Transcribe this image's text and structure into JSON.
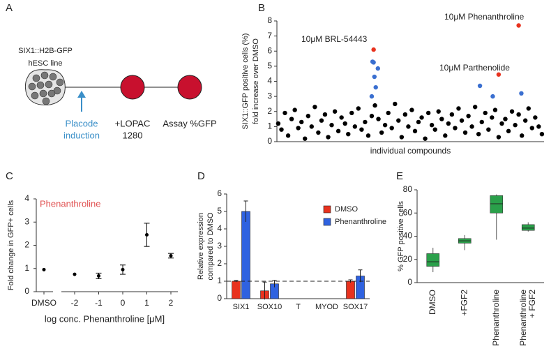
{
  "diagram": {
    "panel": "A",
    "cell_line": [
      "SIX1::H2B-GFP",
      "hESC line"
    ],
    "step1": [
      "Placode",
      "induction"
    ],
    "step2": [
      "+LOPAC",
      "1280"
    ],
    "step3": "Assay %GFP"
  },
  "chart_data": [
    {
      "type": "scatter",
      "panel": "B",
      "y_label": [
        "SIX1::GFP positive cells (%)",
        "fold increase over DMSO"
      ],
      "x_label": "individual compounds",
      "annotations": [
        "10μM BRL-54443",
        "10μM Phenanthroline",
        "10μM Parthenolide"
      ],
      "xlim": [
        0,
        1000
      ],
      "ylim": [
        0,
        8
      ],
      "yticks": [
        0,
        1,
        2,
        3,
        4,
        5,
        6,
        7,
        8
      ],
      "series": [
        {
          "color": "#000000",
          "x": [
            5,
            17,
            30,
            42,
            55,
            67,
            80,
            92,
            105,
            117,
            130,
            142,
            155,
            167,
            180,
            192,
            205,
            217,
            230,
            242,
            255,
            267,
            280,
            292,
            305,
            317,
            330,
            342,
            355,
            367,
            380,
            392,
            405,
            417,
            430,
            442,
            455,
            467,
            480,
            492,
            505,
            517,
            530,
            542,
            555,
            567,
            580,
            592,
            605,
            617,
            630,
            642,
            655,
            667,
            680,
            692,
            705,
            717,
            730,
            742,
            755,
            767,
            780,
            792,
            805,
            817,
            830,
            842,
            855,
            867,
            880,
            892,
            905,
            917,
            930,
            942,
            955,
            967,
            980,
            992
          ],
          "y": [
            1.2,
            0.8,
            1.9,
            0.4,
            1.5,
            2.1,
            0.9,
            1.3,
            0.2,
            1.7,
            1.0,
            2.3,
            0.6,
            1.4,
            1.8,
            0.3,
            1.1,
            2.0,
            0.7,
            1.6,
            1.2,
            0.5,
            1.9,
            1.0,
            2.2,
            0.8,
            1.3,
            0.4,
            1.7,
            2.4,
            1.5,
            0.6,
            1.1,
            1.9,
            0.9,
            2.5,
            1.4,
            0.3,
            1.8,
            1.0,
            2.1,
            0.7,
            1.3,
            1.6,
            0.2,
            1.9,
            1.1,
            0.8,
            2.0,
            1.5,
            0.4,
            1.2,
            1.8,
            0.9,
            2.2,
            1.4,
            0.6,
            1.7,
            1.0,
            2.3,
            0.5,
            1.3,
            1.9,
            0.8,
            1.6,
            2.1,
            0.3,
            1.2,
            1.5,
            0.7,
            2.0,
            1.1,
            1.8,
            0.4,
            1.4,
            2.2,
            0.9,
            1.6,
            1.0,
            0.5
          ]
        },
        {
          "color": "#3a6fd0",
          "x": [
            358,
            362,
            378,
            365,
            370,
            355,
            760,
            808,
            915
          ],
          "y": [
            5.3,
            5.25,
            4.85,
            4.3,
            3.6,
            3.0,
            3.7,
            3.0,
            3.2
          ]
        },
        {
          "color": "#e8321e",
          "x": [
            362,
            905,
            830
          ],
          "y": [
            6.1,
            7.7,
            4.45
          ]
        }
      ]
    },
    {
      "type": "errorbar",
      "panel": "C",
      "y_label": "Fold change in GFP+ cells",
      "x_label": "log conc. Phenanthroline [μM]",
      "annotation": "Phenanthroline",
      "categories": [
        "DMSO",
        "-2",
        "-1",
        "0",
        "1",
        "2"
      ],
      "values": [
        0.95,
        0.75,
        0.68,
        0.95,
        2.45,
        1.55
      ],
      "errors": [
        0,
        0,
        0.12,
        0.2,
        0.5,
        0.1
      ],
      "ylim": [
        0,
        4
      ],
      "yticks": [
        0,
        1,
        2,
        3,
        4
      ],
      "color": "#000000"
    },
    {
      "type": "bar",
      "panel": "D",
      "y_label": [
        "Relative expression",
        "compared to DMSO"
      ],
      "reference_line": 1,
      "categories": [
        "SIX1",
        "SOX10",
        "T",
        "MYOD",
        "SOX17"
      ],
      "ylim": [
        0,
        6
      ],
      "yticks": [
        0,
        1,
        2,
        3,
        4,
        5,
        6
      ],
      "series": [
        {
          "name": "DMSO",
          "color": "#e8321e",
          "values": [
            1,
            0.45,
            null,
            null,
            1
          ],
          "errors": [
            0.05,
            0.5,
            null,
            null,
            0.08
          ]
        },
        {
          "name": "Phenanthroline",
          "color": "#2f62e0",
          "values": [
            5,
            0.85,
            null,
            null,
            1.3
          ],
          "errors": [
            0.6,
            0.2,
            null,
            null,
            0.35
          ]
        }
      ]
    },
    {
      "type": "box",
      "panel": "E",
      "y_label": "% GFP positive cells",
      "categories": [
        [
          "DMSO"
        ],
        [
          "+FGF2"
        ],
        [
          "Phenanthroline"
        ],
        [
          "Phenanthroline",
          "+ FGF2"
        ]
      ],
      "boxes": [
        {
          "min": 9,
          "q1": 14,
          "median": 18,
          "q3": 25,
          "max": 30
        },
        {
          "min": 28,
          "q1": 34,
          "median": 36,
          "q3": 38,
          "max": 41
        },
        {
          "min": 37,
          "q1": 60,
          "median": 68,
          "q3": 75,
          "max": 76
        },
        {
          "min": 44,
          "q1": 45,
          "median": 47,
          "q3": 50,
          "max": 52
        }
      ],
      "ylim": [
        0,
        80
      ],
      "yticks": [
        0,
        20,
        40,
        60,
        80
      ],
      "color": "#2aa04a"
    }
  ]
}
